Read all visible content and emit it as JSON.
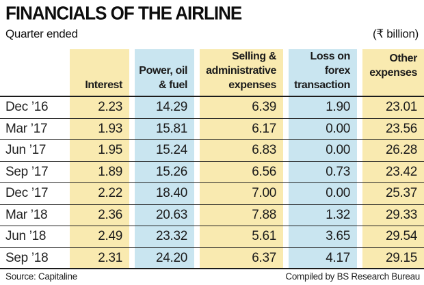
{
  "page": {
    "title": "FINANCIALS OF THE AIRLINE",
    "subtitle_left": "Quarter ended",
    "unit_label": "(₹ billion)",
    "source": "Source: Capitaline",
    "credit": "Compiled by BS Research Bureau"
  },
  "colors": {
    "band_yellow": "#F9EAB0",
    "band_blue": "#C9E5F0",
    "rule": "#1b1b1b",
    "text": "#1b1b1b"
  },
  "chart_data": {
    "type": "table",
    "title": "FINANCIALS OF THE AIRLINE",
    "unit": "₹ billion",
    "row_axis_label": "Quarter ended",
    "columns": [
      "Interest",
      "Power, oil & fuel",
      "Selling & administrative expenses",
      "Loss on forex transaction",
      "Other expenses"
    ],
    "column_band_colors": [
      "yellow",
      "blue",
      "yellow",
      "blue",
      "yellow"
    ],
    "rows": [
      {
        "quarter": "Dec ’16",
        "values": [
          2.23,
          14.29,
          6.39,
          1.9,
          23.01
        ]
      },
      {
        "quarter": "Mar ’17",
        "values": [
          1.93,
          15.81,
          6.17,
          0.0,
          23.56
        ]
      },
      {
        "quarter": "Jun ’17",
        "values": [
          1.95,
          15.24,
          6.83,
          0.0,
          26.28
        ]
      },
      {
        "quarter": "Sep ’17",
        "values": [
          1.89,
          15.26,
          6.56,
          0.73,
          23.42
        ]
      },
      {
        "quarter": "Dec ’17",
        "values": [
          2.22,
          18.4,
          7.0,
          0.0,
          25.37
        ]
      },
      {
        "quarter": "Mar ’18",
        "values": [
          2.36,
          20.63,
          7.88,
          1.32,
          29.33
        ]
      },
      {
        "quarter": "Jun ’18",
        "values": [
          2.49,
          23.32,
          5.61,
          3.65,
          29.54
        ]
      },
      {
        "quarter": "Sep ’18",
        "values": [
          2.31,
          24.2,
          6.37,
          4.17,
          29.15
        ]
      }
    ],
    "value_format": "2dp"
  }
}
